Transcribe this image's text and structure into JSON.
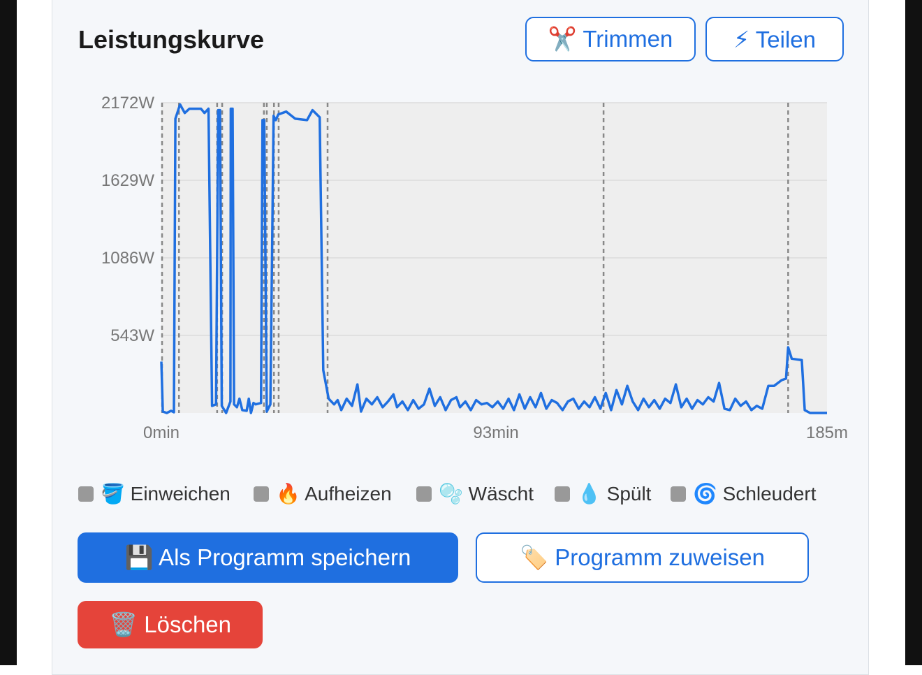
{
  "header": {
    "title": "Leistungskurve",
    "buttons": [
      "✂️ Trimmen",
      "⚡ Teilen"
    ]
  },
  "chart_data": {
    "type": "line",
    "color": "#1f6fe0",
    "grid": true,
    "xlim": [
      0,
      185
    ],
    "ylim": [
      0,
      2172
    ],
    "xticks": [
      {
        "value": 0,
        "label": "0min"
      },
      {
        "value": 93,
        "label": "93min"
      },
      {
        "value": 185,
        "label": "185m"
      }
    ],
    "yticks": [
      {
        "value": 543,
        "label": "543W"
      },
      {
        "value": 1086,
        "label": "1086W"
      },
      {
        "value": 1629,
        "label": "1629W"
      },
      {
        "value": 2172,
        "label": "2172W"
      }
    ],
    "phase_markers": [
      0.2,
      4.9,
      15.5,
      16.9,
      28.5,
      29.3,
      31.3,
      32.6,
      46.2,
      122.9,
      174.2
    ],
    "x": [
      0,
      0.4,
      1.5,
      2.7,
      3.5,
      3.9,
      5.2,
      6.5,
      7.8,
      9.5,
      11,
      12,
      13.1,
      14.1,
      15.2,
      15.8,
      16.3,
      16.8,
      18,
      19.2,
      19.3,
      19.8,
      20.2,
      21,
      21.7,
      22.5,
      23.7,
      24.3,
      24.9,
      25.6,
      26.2,
      27.7,
      28.1,
      28.6,
      29.3,
      30.3,
      31.2,
      31.8,
      32.5,
      34.7,
      37.2,
      40.5,
      42,
      44,
      45,
      46.5,
      48,
      49,
      50,
      51.5,
      53,
      54.5,
      55.5,
      57,
      58.5,
      60,
      61.5,
      63,
      64.5,
      65.5,
      67,
      68.5,
      70,
      71.5,
      73,
      74.5,
      76,
      77.5,
      79,
      80.5,
      82,
      83,
      84.5,
      86,
      87.5,
      89,
      90.5,
      92,
      93.5,
      95,
      96.5,
      98,
      99.5,
      101,
      102.5,
      104,
      105.5,
      107,
      108.5,
      110,
      111.5,
      113,
      114.5,
      116,
      117.5,
      119,
      120.5,
      122,
      123.5,
      125,
      126.5,
      128,
      129.5,
      131,
      132.5,
      134,
      135.5,
      137,
      138.5,
      140,
      141.5,
      143,
      144.5,
      146,
      147.5,
      149,
      150.5,
      152,
      153.5,
      155,
      156.5,
      158,
      159.5,
      161,
      162.5,
      164,
      165.5,
      167,
      168.7,
      170.3,
      172.4,
      173.6,
      174.2,
      175.2,
      178,
      178.8,
      180.3,
      185
    ],
    "values": [
      360,
      10,
      0,
      15,
      5,
      2060,
      2160,
      2100,
      2130,
      2130,
      2130,
      2100,
      2130,
      50,
      60,
      2120,
      2120,
      50,
      0,
      80,
      2130,
      2130,
      60,
      40,
      100,
      20,
      15,
      100,
      0,
      70,
      60,
      70,
      2050,
      2050,
      10,
      60,
      2080,
      2050,
      2090,
      2110,
      2060,
      2050,
      2120,
      2070,
      300,
      100,
      60,
      90,
      20,
      100,
      50,
      200,
      10,
      100,
      60,
      110,
      40,
      80,
      130,
      40,
      80,
      20,
      90,
      30,
      60,
      170,
      50,
      110,
      20,
      90,
      110,
      40,
      80,
      20,
      90,
      60,
      70,
      40,
      80,
      30,
      100,
      20,
      130,
      30,
      110,
      40,
      140,
      30,
      90,
      70,
      20,
      80,
      100,
      30,
      80,
      40,
      110,
      30,
      140,
      20,
      160,
      60,
      190,
      80,
      20,
      100,
      40,
      90,
      30,
      100,
      70,
      200,
      40,
      100,
      30,
      90,
      60,
      110,
      80,
      210,
      30,
      20,
      100,
      50,
      80,
      20,
      50,
      30,
      190,
      190,
      230,
      240,
      460,
      380,
      370,
      20,
      0,
      0
    ]
  },
  "legend": [
    "🪣 Einweichen",
    "🔥 Aufheizen",
    "🫧 Wäscht",
    "💧 Spült",
    "🌀 Schleudert"
  ],
  "actions": [
    "💾 Als Programm speichern",
    "🏷️ Programm zuweisen",
    "🗑️ Löschen"
  ]
}
